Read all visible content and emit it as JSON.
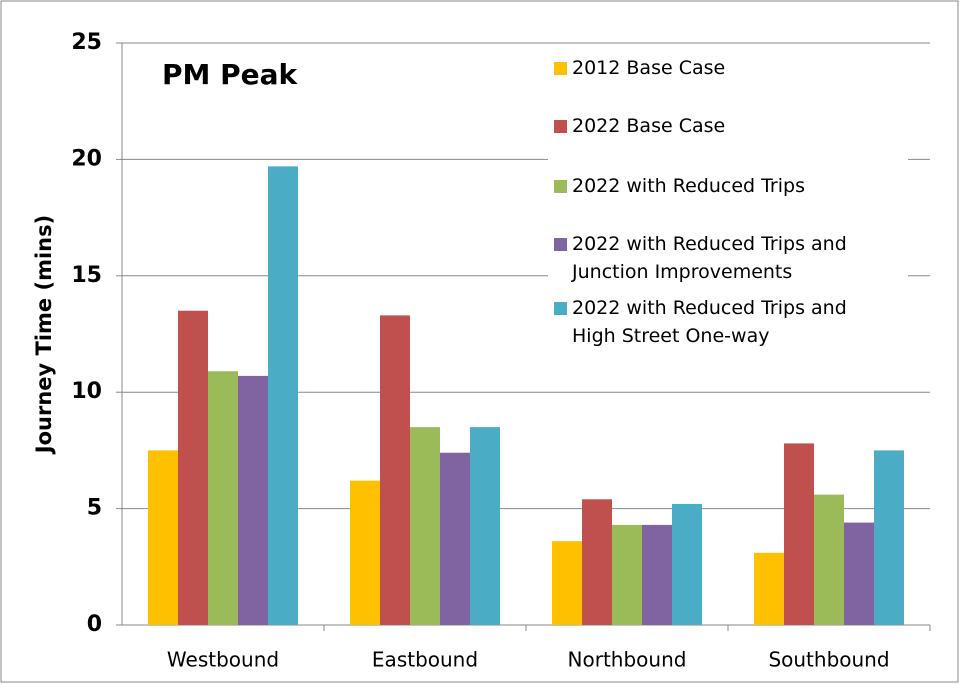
{
  "chart_data": {
    "type": "bar",
    "title": "PM Peak",
    "y_label": "Journey Time (mins)",
    "categories": [
      "Westbound",
      "Eastbound",
      "Northbound",
      "Southbound"
    ],
    "series": [
      {
        "name": "2012 Base Case",
        "color": "#FFC000",
        "values": [
          7.5,
          6.2,
          3.6,
          3.1
        ]
      },
      {
        "name": "2022 Base Case",
        "color": "#C0504D",
        "values": [
          13.5,
          13.3,
          5.4,
          7.8
        ]
      },
      {
        "name": "2022 with Reduced Trips",
        "color": "#9BBB59",
        "values": [
          10.9,
          8.5,
          4.3,
          5.6
        ]
      },
      {
        "name": "2022 with Reduced Trips and Junction Improvements",
        "color": "#8064A2",
        "values": [
          10.7,
          7.4,
          4.3,
          4.4
        ]
      },
      {
        "name": "2022 with Reduced Trips and High Street One-way",
        "color": "#4BACC6",
        "values": [
          19.7,
          8.5,
          5.2,
          7.5
        ]
      }
    ],
    "ylim": [
      0,
      25
    ],
    "yticks": [
      0,
      5,
      10,
      15,
      20,
      25
    ],
    "grid": true
  }
}
